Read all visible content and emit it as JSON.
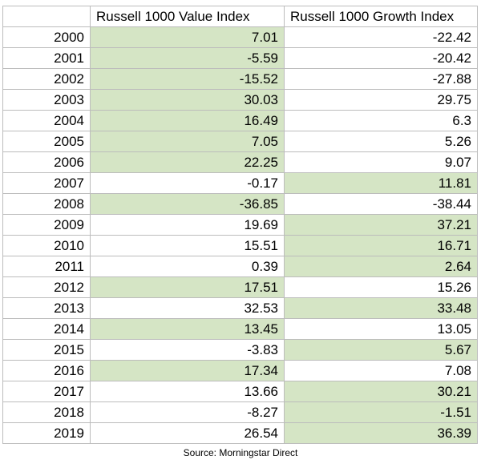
{
  "chart_data": {
    "type": "table",
    "columns": [
      "",
      "Russell 1000 Value Index",
      "Russell 1000 Growth Index"
    ],
    "highlight_color": "#d5e5c5",
    "rows": [
      {
        "year": "2000",
        "value": "7.01",
        "growth": "-22.42",
        "highlight": "value"
      },
      {
        "year": "2001",
        "value": "-5.59",
        "growth": "-20.42",
        "highlight": "value"
      },
      {
        "year": "2002",
        "value": "-15.52",
        "growth": "-27.88",
        "highlight": "value"
      },
      {
        "year": "2003",
        "value": "30.03",
        "growth": "29.75",
        "highlight": "value"
      },
      {
        "year": "2004",
        "value": "16.49",
        "growth": "6.3",
        "highlight": "value"
      },
      {
        "year": "2005",
        "value": "7.05",
        "growth": "5.26",
        "highlight": "value"
      },
      {
        "year": "2006",
        "value": "22.25",
        "growth": "9.07",
        "highlight": "value"
      },
      {
        "year": "2007",
        "value": "-0.17",
        "growth": "11.81",
        "highlight": "growth"
      },
      {
        "year": "2008",
        "value": "-36.85",
        "growth": "-38.44",
        "highlight": "value"
      },
      {
        "year": "2009",
        "value": "19.69",
        "growth": "37.21",
        "highlight": "growth"
      },
      {
        "year": "2010",
        "value": "15.51",
        "growth": "16.71",
        "highlight": "growth"
      },
      {
        "year": "2011",
        "value": "0.39",
        "growth": "2.64",
        "highlight": "growth"
      },
      {
        "year": "2012",
        "value": "17.51",
        "growth": "15.26",
        "highlight": "value"
      },
      {
        "year": "2013",
        "value": "32.53",
        "growth": "33.48",
        "highlight": "growth"
      },
      {
        "year": "2014",
        "value": "13.45",
        "growth": "13.05",
        "highlight": "value"
      },
      {
        "year": "2015",
        "value": "-3.83",
        "growth": "5.67",
        "highlight": "growth"
      },
      {
        "year": "2016",
        "value": "17.34",
        "growth": "7.08",
        "highlight": "value"
      },
      {
        "year": "2017",
        "value": "13.66",
        "growth": "30.21",
        "highlight": "growth"
      },
      {
        "year": "2018",
        "value": "-8.27",
        "growth": "-1.51",
        "highlight": "growth"
      },
      {
        "year": "2019",
        "value": "26.54",
        "growth": "36.39",
        "highlight": "growth"
      }
    ]
  },
  "source": "Source: Morningstar Direct"
}
